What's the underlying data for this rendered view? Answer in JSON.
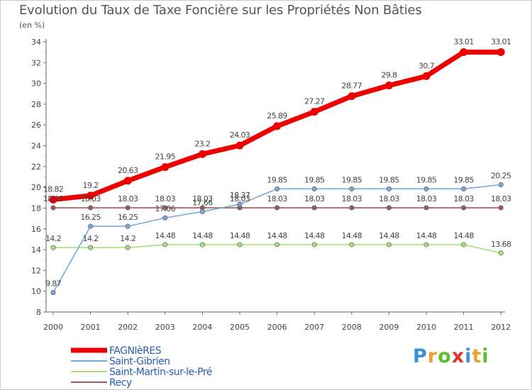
{
  "title": "Evolution du Taux de Taxe Foncière sur les Propriétés Non Bâties",
  "unit_label": "(en %)",
  "brand": {
    "letters": [
      "P",
      "r",
      "o",
      "x",
      "i",
      "t",
      "i"
    ],
    "colors": [
      "#3a8fd6",
      "#f0a030",
      "#5bbf2a",
      "#e0302a",
      "#3a8fd6",
      "#f0a030",
      "#5bbf2a"
    ]
  },
  "chart_data": {
    "type": "line",
    "title": "Evolution du Taux de Taxe Foncière sur les Propriétés Non Bâties",
    "ylabel": "(en %)",
    "xlabel": "",
    "x": [
      "2000",
      "2001",
      "2002",
      "2003",
      "2004",
      "2005",
      "2006",
      "2007",
      "2008",
      "2009",
      "2010",
      "2011",
      "2012"
    ],
    "ylim": [
      8,
      34
    ],
    "yticks": [
      "8",
      "10",
      "12",
      "14",
      "16",
      "18",
      "20",
      "22",
      "24",
      "26",
      "28",
      "30",
      "32",
      "34"
    ],
    "grid": false,
    "legend_position": "bottom-left",
    "series": [
      {
        "name": "FAGNIèRES",
        "color": "#ee0000",
        "values": [
          18.82,
          19.2,
          20.63,
          21.95,
          23.2,
          24.03,
          25.89,
          27.27,
          28.77,
          29.8,
          30.7,
          33.01,
          33.01
        ],
        "labels": [
          "18.82",
          "19.2",
          "20.63",
          "21.95",
          "23.2",
          "24.03",
          "25.89",
          "27.27",
          "28.77",
          "29.8",
          "30.7",
          "33.01",
          "33.01"
        ]
      },
      {
        "name": "Saint-Gibrien",
        "color": "#78a9d6",
        "values": [
          9.87,
          16.25,
          16.25,
          17.06,
          17.66,
          18.37,
          19.85,
          19.85,
          19.85,
          19.85,
          19.85,
          19.85,
          20.25
        ],
        "labels": [
          "9.87",
          "16.25",
          "16.25",
          "17.06",
          "17.66",
          "18.37",
          "19.85",
          "19.85",
          "19.85",
          "19.85",
          "19.85",
          "19.85",
          "20.25"
        ]
      },
      {
        "name": "Saint-Martin-sur-le-Pré",
        "color": "#a6e07d",
        "values": [
          14.2,
          14.2,
          14.2,
          14.48,
          14.48,
          14.48,
          14.48,
          14.48,
          14.48,
          14.48,
          14.48,
          14.48,
          13.68
        ],
        "labels": [
          "14.2",
          "14.2",
          "14.2",
          "14.48",
          "14.48",
          "14.48",
          "14.48",
          "14.48",
          "14.48",
          "14.48",
          "14.48",
          "14.48",
          "13.68"
        ]
      },
      {
        "name": "Recy",
        "color": "#9c5a5a",
        "values": [
          18.03,
          18.03,
          18.03,
          18.03,
          18.03,
          18.03,
          18.03,
          18.03,
          18.03,
          18.03,
          18.03,
          18.03,
          18.03
        ],
        "labels": [
          "18.03",
          "18.03",
          "18.03",
          "18.03",
          "18.03",
          "18.03",
          "18.03",
          "18.03",
          "18.03",
          "18.03",
          "18.03",
          "18.03",
          "18.03"
        ]
      }
    ]
  }
}
